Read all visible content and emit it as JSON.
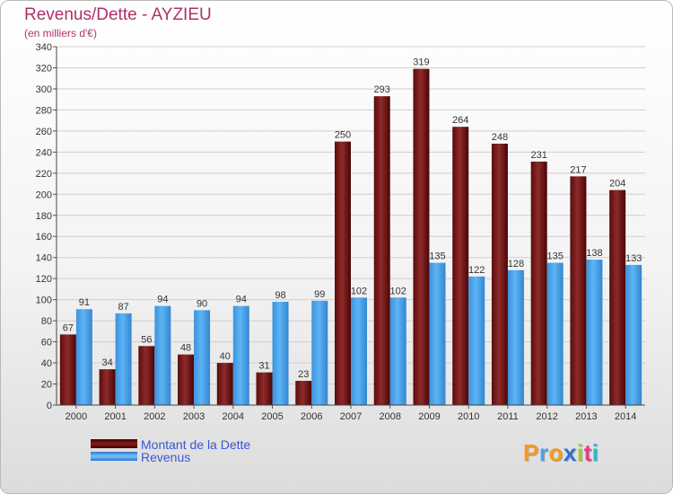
{
  "header": {
    "title": "Revenus/Dette - AYZIEU",
    "subtitle": "(en milliers d'€)"
  },
  "chart_data": {
    "type": "bar",
    "title": "Revenus/Dette - AYZIEU",
    "subtitle": "(en milliers d'€)",
    "categories": [
      "2000",
      "2001",
      "2002",
      "2003",
      "2004",
      "2005",
      "2006",
      "2007",
      "2008",
      "2009",
      "2010",
      "2011",
      "2012",
      "2013",
      "2014"
    ],
    "series": [
      {
        "name": "Montant de la Dette",
        "color": "#7a1a1a",
        "values": [
          67,
          34,
          56,
          48,
          40,
          31,
          23,
          250,
          293,
          319,
          264,
          248,
          231,
          217,
          204
        ]
      },
      {
        "name": "Revenus",
        "color": "#4aa3e8",
        "values": [
          91,
          87,
          94,
          90,
          94,
          98,
          99,
          102,
          102,
          135,
          122,
          128,
          135,
          138,
          133
        ]
      }
    ],
    "ylim": [
      0,
      340
    ],
    "yticks": [
      0,
      20,
      40,
      60,
      80,
      100,
      120,
      140,
      160,
      180,
      200,
      220,
      240,
      260,
      280,
      300,
      320,
      340
    ],
    "grid": true,
    "data_labels": true,
    "legend_position": "bottom-left"
  },
  "legend": {
    "debt_label": "Montant de la Dette",
    "revenue_label": "Revenus"
  },
  "logo": {
    "letters": [
      "P",
      "r",
      "o",
      "x",
      "i",
      "t",
      "i"
    ],
    "colors": [
      "#f39a1f",
      "#4aa3e8",
      "#f39a1f",
      "#2b6fd6",
      "#9acd32",
      "#e23d8c",
      "#2bb7c9"
    ]
  }
}
